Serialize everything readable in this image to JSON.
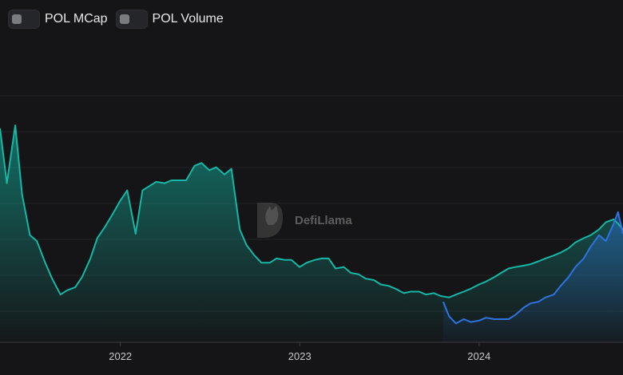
{
  "toggles": [
    {
      "label": "POL MCap",
      "on": false
    },
    {
      "label": "POL Volume",
      "on": false
    }
  ],
  "watermark": {
    "text": "DefiLlama",
    "icon": "llama-logo-icon"
  },
  "colors": {
    "background": "#151517",
    "series_teal": "#14b8a6",
    "series_blue": "#2f73e0",
    "grid": "#222327"
  },
  "chart_data": {
    "type": "area",
    "x_ticks": [
      "2022",
      "2023",
      "2024"
    ],
    "x_range": [
      "2021-05-01",
      "2024-10-20"
    ],
    "y_axis_visible": false,
    "grid": true,
    "series": [
      {
        "color": "#14b8a6",
        "x": [
          "2021-05-01",
          "2021-05-15",
          "2021-06-01",
          "2021-06-15",
          "2021-07-01",
          "2021-07-15",
          "2021-08-01",
          "2021-08-15",
          "2021-09-01",
          "2021-09-15",
          "2021-10-01",
          "2021-10-15",
          "2021-11-01",
          "2021-11-15",
          "2021-12-01",
          "2021-12-15",
          "2022-01-01",
          "2022-01-15",
          "2022-02-01",
          "2022-02-15",
          "2022-03-01",
          "2022-03-15",
          "2022-04-01",
          "2022-04-15",
          "2022-05-01",
          "2022-05-15",
          "2022-06-01",
          "2022-06-15",
          "2022-07-01",
          "2022-07-15",
          "2022-08-01",
          "2022-08-15",
          "2022-09-01",
          "2022-09-15",
          "2022-10-01",
          "2022-10-15",
          "2022-11-01",
          "2022-11-15",
          "2022-12-01",
          "2022-12-15",
          "2023-01-01",
          "2023-01-15",
          "2023-02-01",
          "2023-02-15",
          "2023-03-01",
          "2023-03-15",
          "2023-04-01",
          "2023-04-15",
          "2023-05-01",
          "2023-05-15",
          "2023-06-01",
          "2023-06-15",
          "2023-07-01",
          "2023-07-15",
          "2023-08-01",
          "2023-08-15",
          "2023-09-01",
          "2023-09-15",
          "2023-10-01",
          "2023-10-15",
          "2023-11-01",
          "2023-11-15",
          "2023-12-01",
          "2023-12-15",
          "2024-01-01",
          "2024-01-15",
          "2024-02-01",
          "2024-02-15",
          "2024-03-01",
          "2024-03-15",
          "2024-04-01",
          "2024-04-15",
          "2024-05-01",
          "2024-05-15",
          "2024-06-01",
          "2024-06-15",
          "2024-07-01",
          "2024-07-15",
          "2024-08-01",
          "2024-08-15",
          "2024-09-01",
          "2024-09-15",
          "2024-10-01",
          "2024-10-10",
          "2024-10-20"
        ],
        "values": [
          1.48,
          1.1,
          1.5,
          1.02,
          0.74,
          0.7,
          0.55,
          0.44,
          0.33,
          0.36,
          0.38,
          0.45,
          0.58,
          0.72,
          0.8,
          0.88,
          0.98,
          1.05,
          0.75,
          1.05,
          1.08,
          1.11,
          1.1,
          1.12,
          1.12,
          1.12,
          1.22,
          1.24,
          1.19,
          1.21,
          1.16,
          1.2,
          0.78,
          0.67,
          0.6,
          0.55,
          0.55,
          0.58,
          0.57,
          0.57,
          0.52,
          0.55,
          0.57,
          0.58,
          0.58,
          0.51,
          0.52,
          0.48,
          0.47,
          0.44,
          0.43,
          0.4,
          0.39,
          0.37,
          0.34,
          0.35,
          0.35,
          0.33,
          0.34,
          0.32,
          0.31,
          0.33,
          0.35,
          0.37,
          0.4,
          0.42,
          0.45,
          0.48,
          0.51,
          0.52,
          0.53,
          0.54,
          0.56,
          0.58,
          0.6,
          0.62,
          0.65,
          0.69,
          0.72,
          0.74,
          0.78,
          0.83,
          0.85,
          0.82,
          0.78
        ]
      },
      {
        "color": "#2f73e0",
        "x": [
          "2023-10-20",
          "2023-11-01",
          "2023-11-15",
          "2023-12-01",
          "2023-12-15",
          "2024-01-01",
          "2024-01-15",
          "2024-02-01",
          "2024-02-15",
          "2024-03-01",
          "2024-03-15",
          "2024-04-01",
          "2024-04-15",
          "2024-05-01",
          "2024-05-15",
          "2024-06-01",
          "2024-06-15",
          "2024-07-01",
          "2024-07-15",
          "2024-08-01",
          "2024-08-15",
          "2024-09-01",
          "2024-09-15",
          "2024-10-01",
          "2024-10-10",
          "2024-10-20"
        ],
        "values": [
          0.28,
          0.18,
          0.13,
          0.16,
          0.14,
          0.15,
          0.17,
          0.16,
          0.16,
          0.16,
          0.19,
          0.24,
          0.27,
          0.28,
          0.31,
          0.33,
          0.39,
          0.45,
          0.52,
          0.58,
          0.66,
          0.74,
          0.7,
          0.82,
          0.9,
          0.75
        ]
      }
    ]
  }
}
